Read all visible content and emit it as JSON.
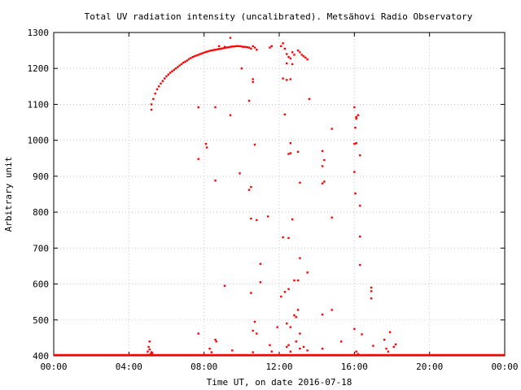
{
  "chart_data": {
    "type": "scatter",
    "title": "Total UV radiation intensity (uncalibrated). Metsähovi Radio Observatory",
    "xlabel": "Time UT, on date 2016-07-18",
    "ylabel": "Arbitrary unit",
    "x_unit": "hours",
    "xlim": [
      0,
      24
    ],
    "ylim": [
      400,
      1300
    ],
    "x_ticks": [
      {
        "value": 0,
        "label": "00:00"
      },
      {
        "value": 4,
        "label": "04:00"
      },
      {
        "value": 8,
        "label": "08:00"
      },
      {
        "value": 12,
        "label": "12:00"
      },
      {
        "value": 16,
        "label": "16:00"
      },
      {
        "value": 20,
        "label": "20:00"
      },
      {
        "value": 24,
        "label": "00:00"
      }
    ],
    "y_ticks": [
      400,
      500,
      600,
      700,
      800,
      900,
      1000,
      1100,
      1200,
      1300
    ],
    "grid": true,
    "point_color": "#ff0000",
    "series": [
      {
        "points": [
          [
            0.0,
            400
          ],
          [
            0.5,
            400
          ],
          [
            1.0,
            400
          ],
          [
            1.5,
            400
          ],
          [
            2.0,
            400
          ],
          [
            2.5,
            400
          ],
          [
            3.0,
            400
          ],
          [
            3.5,
            400
          ],
          [
            4.0,
            400
          ],
          [
            4.5,
            400
          ],
          [
            4.8,
            400
          ],
          [
            4.9,
            400
          ],
          [
            5.0,
            403
          ],
          [
            5.0,
            412
          ],
          [
            5.05,
            425
          ],
          [
            5.1,
            440
          ],
          [
            5.1,
            418
          ],
          [
            5.15,
            405
          ],
          [
            5.2,
            410
          ],
          [
            5.25,
            408
          ],
          [
            5.2,
            1085
          ],
          [
            5.2,
            1100
          ],
          [
            5.3,
            1115
          ],
          [
            5.4,
            1130
          ],
          [
            5.5,
            1142
          ],
          [
            5.6,
            1150
          ],
          [
            5.7,
            1158
          ],
          [
            5.8,
            1165
          ],
          [
            5.9,
            1172
          ],
          [
            6.0,
            1178
          ],
          [
            6.1,
            1183
          ],
          [
            6.2,
            1188
          ],
          [
            6.3,
            1192
          ],
          [
            6.4,
            1196
          ],
          [
            6.5,
            1200
          ],
          [
            6.6,
            1204
          ],
          [
            6.7,
            1208
          ],
          [
            6.8,
            1212
          ],
          [
            6.9,
            1216
          ],
          [
            7.0,
            1219
          ],
          [
            7.1,
            1222
          ],
          [
            7.2,
            1226
          ],
          [
            7.3,
            1229
          ],
          [
            7.4,
            1232
          ],
          [
            7.5,
            1234
          ],
          [
            7.6,
            1236
          ],
          [
            7.7,
            1238
          ],
          [
            7.8,
            1240
          ],
          [
            7.9,
            1242
          ],
          [
            8.0,
            1244
          ],
          [
            8.1,
            1246
          ],
          [
            8.2,
            1247
          ],
          [
            8.3,
            1249
          ],
          [
            8.4,
            1250
          ],
          [
            8.5,
            1251
          ],
          [
            8.6,
            1252
          ],
          [
            8.7,
            1253
          ],
          [
            8.8,
            1254
          ],
          [
            8.9,
            1255
          ],
          [
            9.0,
            1256
          ],
          [
            9.1,
            1257
          ],
          [
            9.2,
            1258
          ],
          [
            9.3,
            1259
          ],
          [
            9.4,
            1260
          ],
          [
            9.5,
            1261
          ],
          [
            9.6,
            1261
          ],
          [
            9.7,
            1262
          ],
          [
            9.8,
            1262
          ],
          [
            9.9,
            1262
          ],
          [
            10.0,
            1261
          ],
          [
            10.1,
            1260
          ],
          [
            10.2,
            1260
          ],
          [
            10.3,
            1259
          ],
          [
            10.4,
            1258
          ],
          [
            9.4,
            1285
          ],
          [
            9.1,
            1260
          ],
          [
            8.8,
            1262
          ],
          [
            10.5,
            1255
          ],
          [
            10.6,
            1262
          ],
          [
            10.7,
            1258
          ],
          [
            10.8,
            1252
          ],
          [
            11.5,
            1258
          ],
          [
            11.6,
            1262
          ],
          [
            12.1,
            1262
          ],
          [
            12.2,
            1270
          ],
          [
            12.3,
            1255
          ],
          [
            12.4,
            1240
          ],
          [
            12.5,
            1232
          ],
          [
            12.6,
            1228
          ],
          [
            12.7,
            1245
          ],
          [
            12.8,
            1238
          ],
          [
            13.0,
            1250
          ],
          [
            13.1,
            1245
          ],
          [
            13.2,
            1238
          ],
          [
            13.3,
            1234
          ],
          [
            13.4,
            1230
          ],
          [
            13.5,
            1225
          ],
          [
            12.4,
            1214
          ],
          [
            12.7,
            1212
          ],
          [
            10.0,
            1200
          ],
          [
            10.6,
            1170
          ],
          [
            10.6,
            1162
          ],
          [
            12.2,
            1172
          ],
          [
            12.6,
            1170
          ],
          [
            12.4,
            1168
          ],
          [
            10.4,
            1110
          ],
          [
            13.6,
            1115
          ],
          [
            7.7,
            1092
          ],
          [
            8.6,
            1092
          ],
          [
            9.4,
            1070
          ],
          [
            12.3,
            1072
          ],
          [
            16.0,
            1092
          ],
          [
            16.1,
            1065
          ],
          [
            16.1,
            1060
          ],
          [
            16.2,
            1070
          ],
          [
            16.05,
            1035
          ],
          [
            14.8,
            1032
          ],
          [
            16.0,
            990
          ],
          [
            16.1,
            992
          ],
          [
            10.7,
            988
          ],
          [
            12.6,
            992
          ],
          [
            8.1,
            990
          ],
          [
            8.15,
            980
          ],
          [
            12.5,
            962
          ],
          [
            12.6,
            964
          ],
          [
            13.0,
            968
          ],
          [
            14.3,
            970
          ],
          [
            16.3,
            958
          ],
          [
            7.7,
            948
          ],
          [
            14.4,
            945
          ],
          [
            14.3,
            928
          ],
          [
            9.9,
            908
          ],
          [
            16.0,
            912
          ],
          [
            8.6,
            888
          ],
          [
            14.4,
            885
          ],
          [
            14.3,
            880
          ],
          [
            13.1,
            882
          ],
          [
            10.5,
            870
          ],
          [
            10.4,
            862
          ],
          [
            16.05,
            852
          ],
          [
            16.3,
            818
          ],
          [
            11.4,
            788
          ],
          [
            10.5,
            782
          ],
          [
            10.8,
            778
          ],
          [
            12.7,
            780
          ],
          [
            14.8,
            785
          ],
          [
            16.3,
            732
          ],
          [
            12.2,
            730
          ],
          [
            12.5,
            728
          ],
          [
            13.1,
            672
          ],
          [
            16.3,
            653
          ],
          [
            11.0,
            656
          ],
          [
            13.5,
            632
          ],
          [
            9.1,
            595
          ],
          [
            11.0,
            605
          ],
          [
            12.8,
            610
          ],
          [
            13.0,
            610
          ],
          [
            12.3,
            578
          ],
          [
            12.5,
            586
          ],
          [
            10.5,
            575
          ],
          [
            12.1,
            565
          ],
          [
            16.9,
            590
          ],
          [
            16.9,
            580
          ],
          [
            16.9,
            560
          ],
          [
            13.0,
            528
          ],
          [
            14.8,
            528
          ],
          [
            14.3,
            515
          ],
          [
            12.8,
            513
          ],
          [
            12.9,
            508
          ],
          [
            10.7,
            495
          ],
          [
            12.4,
            490
          ],
          [
            12.6,
            480
          ],
          [
            7.7,
            462
          ],
          [
            13.1,
            462
          ],
          [
            16.0,
            475
          ],
          [
            10.6,
            470
          ],
          [
            10.8,
            462
          ],
          [
            11.9,
            480
          ],
          [
            12.9,
            440
          ],
          [
            16.4,
            460
          ],
          [
            17.6,
            445
          ],
          [
            17.9,
            466
          ],
          [
            15.3,
            440
          ],
          [
            8.6,
            445
          ],
          [
            8.65,
            440
          ],
          [
            9.5,
            415
          ],
          [
            8.3,
            420
          ],
          [
            8.4,
            410
          ],
          [
            10.6,
            410
          ],
          [
            10.9,
            402
          ],
          [
            11.5,
            430
          ],
          [
            11.6,
            412
          ],
          [
            12.4,
            425
          ],
          [
            12.5,
            430
          ],
          [
            12.6,
            412
          ],
          [
            13.1,
            420
          ],
          [
            13.3,
            425
          ],
          [
            13.5,
            415
          ],
          [
            14.3,
            420
          ],
          [
            14.5,
            402
          ],
          [
            16.1,
            412
          ],
          [
            16.2,
            405
          ],
          [
            17.0,
            428
          ],
          [
            17.7,
            420
          ],
          [
            17.8,
            412
          ],
          [
            18.1,
            425
          ],
          [
            18.2,
            432
          ],
          [
            5.5,
            400
          ],
          [
            6.0,
            400
          ],
          [
            6.5,
            400
          ],
          [
            7.0,
            400
          ],
          [
            7.5,
            400
          ],
          [
            8.0,
            400
          ],
          [
            8.5,
            400
          ],
          [
            9.0,
            400
          ],
          [
            9.5,
            400
          ],
          [
            10.0,
            400
          ],
          [
            10.5,
            400
          ],
          [
            11.0,
            400
          ],
          [
            11.5,
            400
          ],
          [
            12.0,
            400
          ],
          [
            12.5,
            400
          ],
          [
            13.0,
            400
          ],
          [
            13.5,
            400
          ],
          [
            14.0,
            400
          ],
          [
            14.5,
            400
          ],
          [
            15.0,
            400
          ],
          [
            15.5,
            400
          ],
          [
            16.0,
            400
          ],
          [
            16.5,
            400
          ],
          [
            17.0,
            400
          ],
          [
            17.5,
            400
          ],
          [
            18.0,
            400
          ],
          [
            18.5,
            400
          ],
          [
            19.0,
            400
          ],
          [
            19.5,
            400
          ],
          [
            20.0,
            400
          ],
          [
            20.5,
            400
          ],
          [
            21.0,
            400
          ],
          [
            21.5,
            400
          ],
          [
            22.0,
            400
          ],
          [
            22.5,
            400
          ],
          [
            23.0,
            400
          ],
          [
            23.5,
            400
          ],
          [
            24.0,
            400
          ]
        ]
      }
    ]
  }
}
